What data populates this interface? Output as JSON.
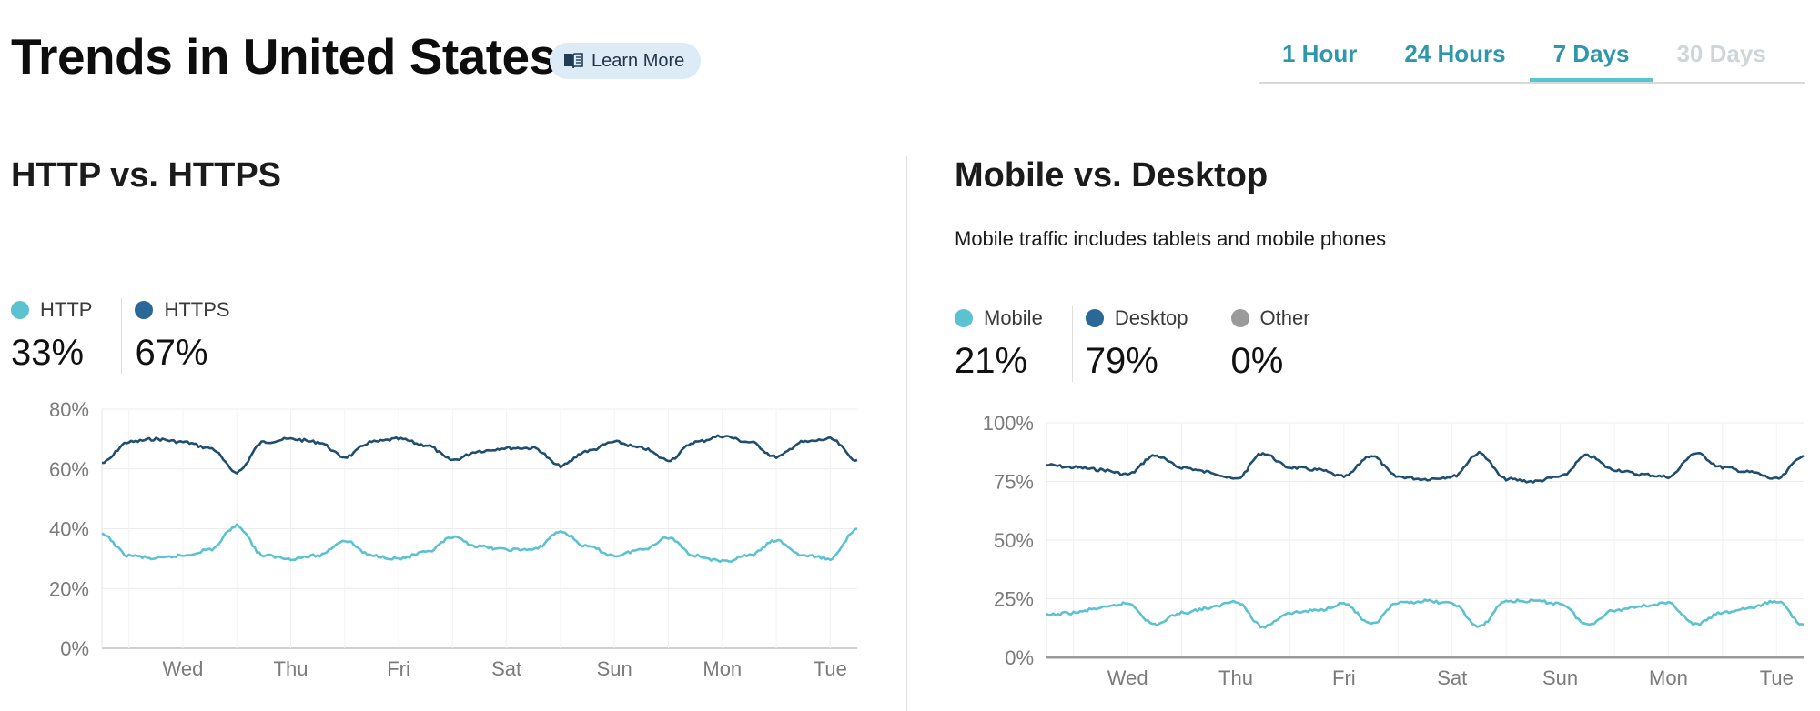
{
  "header": {
    "title": "Trends in United States",
    "learn_more": "Learn More",
    "tabs": [
      {
        "label": "1 Hour",
        "state": "normal"
      },
      {
        "label": "24 Hours",
        "state": "normal"
      },
      {
        "label": "7 Days",
        "state": "active"
      },
      {
        "label": "30 Days",
        "state": "disabled"
      }
    ]
  },
  "colors": {
    "light": "#5bc2cf",
    "dark": "#1f4e6e",
    "dark_dot": "#2a6897",
    "other": "#9a9a9a"
  },
  "panels": [
    {
      "title": "HTTP vs. HTTPS",
      "subtitle": "",
      "legend": [
        {
          "label": "HTTP",
          "value": "33%",
          "color": "#5bc2cf"
        },
        {
          "label": "HTTPS",
          "value": "67%",
          "color": "#2a6897"
        }
      ]
    },
    {
      "title": "Mobile vs. Desktop",
      "subtitle": "Mobile traffic includes tablets and mobile phones",
      "legend": [
        {
          "label": "Mobile",
          "value": "21%",
          "color": "#5bc2cf"
        },
        {
          "label": "Desktop",
          "value": "79%",
          "color": "#2a6897"
        },
        {
          "label": "Other",
          "value": "0%",
          "color": "#9a9a9a"
        }
      ]
    }
  ],
  "chart_data": [
    {
      "type": "line",
      "title": "HTTP vs. HTTPS",
      "xlabel": "",
      "ylabel": "",
      "x_ticks": [
        "Wed",
        "Thu",
        "Fri",
        "Sat",
        "Sun",
        "Mon",
        "Tue"
      ],
      "y_ticks": [
        "0%",
        "20%",
        "40%",
        "60%",
        "80%"
      ],
      "ylim": [
        0,
        80
      ],
      "grid": true,
      "x": [
        "Tue 12:00",
        "Wed 00:00",
        "Wed 06:00",
        "Wed 12:00",
        "Wed 18:00",
        "Thu 00:00",
        "Thu 06:00",
        "Thu 12:00",
        "Thu 18:00",
        "Fri 00:00",
        "Fri 06:00",
        "Fri 12:00",
        "Fri 18:00",
        "Sat 00:00",
        "Sat 06:00",
        "Sat 12:00",
        "Sat 18:00",
        "Sun 00:00",
        "Sun 06:00",
        "Sun 12:00",
        "Sun 18:00",
        "Mon 00:00",
        "Mon 06:00",
        "Mon 12:00",
        "Mon 18:00",
        "Tue 00:00",
        "Tue 06:00",
        "Tue 12:00",
        "Tue 18:00"
      ],
      "series": [
        {
          "name": "HTTPS",
          "values": [
            62,
            69,
            70,
            69,
            67,
            59,
            69,
            70,
            69,
            64,
            69,
            70,
            68,
            63,
            66,
            67,
            67,
            61,
            66,
            69,
            67,
            63,
            69,
            71,
            69,
            64,
            69,
            70,
            63
          ]
        },
        {
          "name": "HTTP",
          "values": [
            38,
            31,
            30,
            31,
            33,
            41,
            31,
            30,
            31,
            36,
            31,
            30,
            32,
            37,
            34,
            33,
            33,
            39,
            34,
            31,
            33,
            37,
            31,
            29,
            31,
            36,
            31,
            30,
            40
          ]
        }
      ]
    },
    {
      "type": "line",
      "title": "Mobile vs. Desktop",
      "xlabel": "",
      "ylabel": "",
      "x_ticks": [
        "Wed",
        "Thu",
        "Fri",
        "Sat",
        "Sun",
        "Mon",
        "Tue"
      ],
      "y_ticks": [
        "0%",
        "25%",
        "50%",
        "75%",
        "100%"
      ],
      "ylim": [
        0,
        100
      ],
      "grid": true,
      "x": [
        "Tue 12:00",
        "Wed 00:00",
        "Wed 06:00",
        "Wed 12:00",
        "Wed 18:00",
        "Thu 00:00",
        "Thu 06:00",
        "Thu 12:00",
        "Thu 18:00",
        "Fri 00:00",
        "Fri 06:00",
        "Fri 12:00",
        "Fri 18:00",
        "Sat 00:00",
        "Sat 06:00",
        "Sat 12:00",
        "Sat 18:00",
        "Sun 00:00",
        "Sun 06:00",
        "Sun 12:00",
        "Sun 18:00",
        "Mon 00:00",
        "Mon 06:00",
        "Mon 12:00",
        "Mon 18:00",
        "Tue 00:00",
        "Tue 06:00",
        "Tue 12:00",
        "Tue 18:00"
      ],
      "series": [
        {
          "name": "Desktop",
          "values": [
            82,
            81,
            80,
            78,
            86,
            81,
            79,
            76,
            87,
            81,
            80,
            77,
            86,
            77,
            76,
            77,
            87,
            76,
            75,
            77,
            86,
            80,
            78,
            77,
            87,
            81,
            79,
            76,
            86
          ]
        },
        {
          "name": "Mobile",
          "values": [
            18,
            19,
            21,
            23,
            14,
            19,
            21,
            24,
            13,
            19,
            20,
            23,
            14,
            23,
            24,
            23,
            13,
            24,
            24,
            23,
            14,
            20,
            22,
            23,
            14,
            19,
            21,
            24,
            14
          ]
        },
        {
          "name": "Other",
          "values": [
            0,
            0,
            0,
            0,
            0,
            0,
            0,
            0,
            0,
            0,
            0,
            0,
            0,
            0,
            0,
            0,
            0,
            0,
            0,
            0,
            0,
            0,
            0,
            0,
            0,
            0,
            0,
            0,
            0
          ]
        }
      ]
    }
  ]
}
